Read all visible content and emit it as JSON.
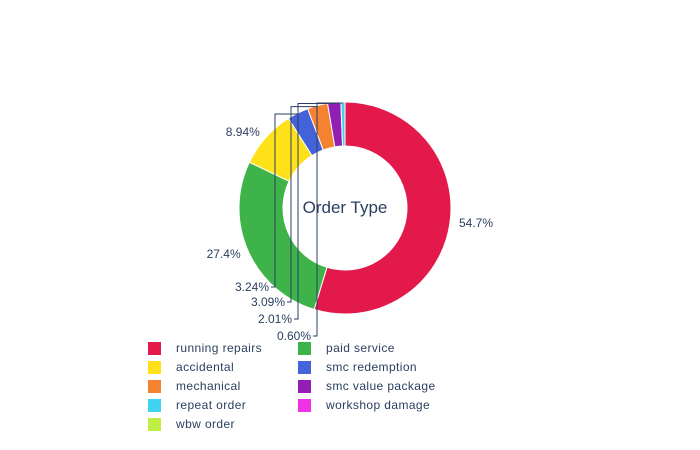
{
  "chart_data": {
    "type": "pie",
    "hole": true,
    "title": "Order Type",
    "labels": [
      "running repairs",
      "paid service",
      "accidental",
      "smc redemption",
      "mechanical",
      "smc value package",
      "repeat order",
      "workshop damage",
      "wbw order"
    ],
    "values": [
      54.7,
      27.4,
      8.94,
      3.24,
      3.09,
      2.01,
      0.6,
      0.01,
      0.01
    ],
    "text_labels": [
      "54.7%",
      "27.4%",
      "8.94%",
      "3.24%",
      "3.09%",
      "2.01%",
      "0.60%",
      "",
      ""
    ],
    "colors": [
      "#e4194b",
      "#3db34a",
      "#ffe119",
      "#4463d8",
      "#f58230",
      "#921eb4",
      "#40d4f0",
      "#f032e6",
      "#bfef45"
    ],
    "legend_placement": "bottom",
    "legend_order": [
      "running repairs",
      "paid service",
      "accidental",
      "smc redemption",
      "mechanical",
      "smc value package",
      "repeat order",
      "workshop damage",
      "wbw order"
    ]
  }
}
